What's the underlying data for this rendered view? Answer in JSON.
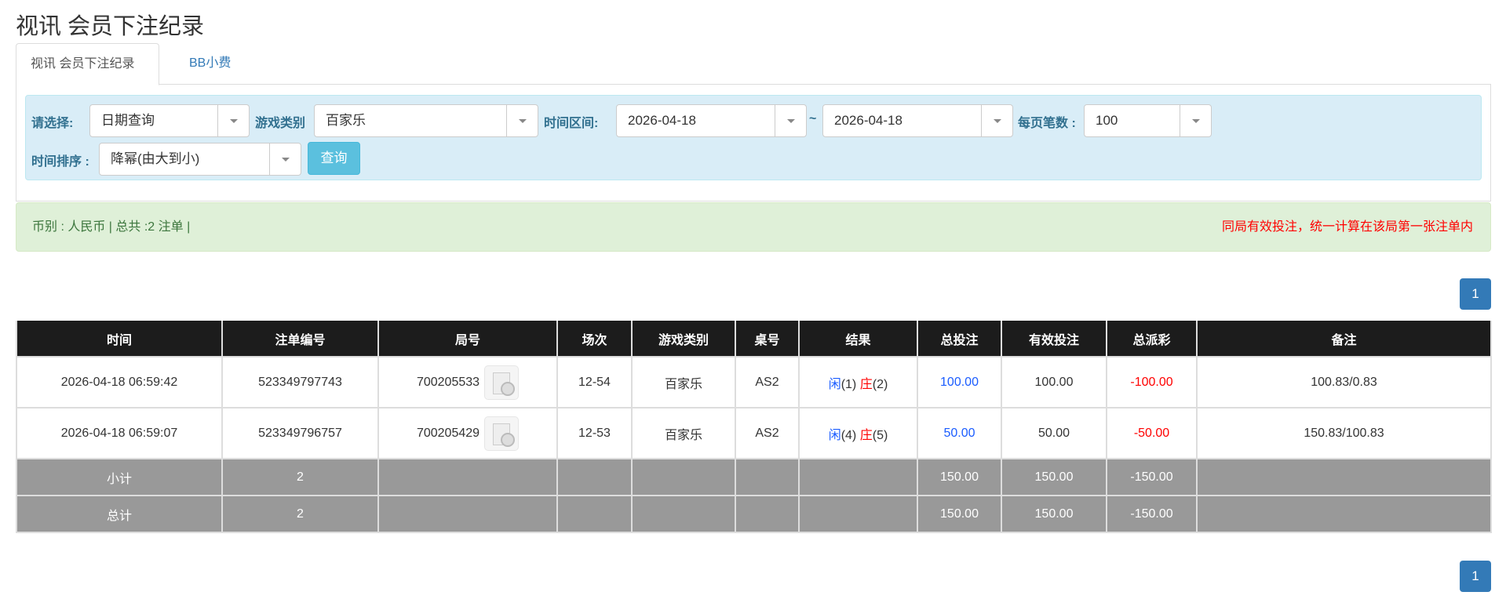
{
  "title": "视讯 会员下注纪录",
  "tabs": [
    {
      "label": "视讯 会员下注纪录"
    },
    {
      "label": "BB小费"
    }
  ],
  "filter": {
    "select_label": "请选择:",
    "select_value": "日期查询",
    "game_label": "游戏类别",
    "game_value": "百家乐",
    "range_label": "时间区间:",
    "date_from": "2026-04-18",
    "tilde": "~",
    "date_to": "2026-04-18",
    "per_page_label": "每页笔数 :",
    "per_page_value": "100",
    "sort_label": "时间排序 :",
    "sort_value": "降幂(由大到小)",
    "query_button": "查询"
  },
  "summary": {
    "text": "币别 : 人民币 | 总共 :2 注单 |",
    "note": "同局有效投注，统一计算在该局第一张注单内"
  },
  "pagination": {
    "page": "1"
  },
  "colors": {
    "header_bg": "#1c1c1c",
    "sum_bg": "#999999",
    "player": "#1a5cff",
    "banker": "#ff0000"
  },
  "table": {
    "headers": [
      "时间",
      "注单编号",
      "局号",
      "场次",
      "游戏类别",
      "桌号",
      "结果",
      "总投注",
      "有效投注",
      "总派彩",
      "备注"
    ],
    "rows": [
      {
        "time": "2026-04-18 06:59:42",
        "bet_id": "523349797743",
        "round": "700205533",
        "session": "12-54",
        "game": "百家乐",
        "table": "AS2",
        "player": "闲",
        "player_score": "(1)",
        "banker": "庄",
        "banker_score": "(2)",
        "total_bet": "100.00",
        "valid_bet": "100.00",
        "payout": "-100.00",
        "remark": "100.83/0.83"
      },
      {
        "time": "2026-04-18 06:59:07",
        "bet_id": "523349796757",
        "round": "700205429",
        "session": "12-53",
        "game": "百家乐",
        "table": "AS2",
        "player": "闲",
        "player_score": "(4)",
        "banker": "庄",
        "banker_score": "(5)",
        "total_bet": "50.00",
        "valid_bet": "50.00",
        "payout": "-50.00",
        "remark": "150.83/100.83"
      }
    ],
    "subtotal": {
      "label": "小计",
      "count": "2",
      "total_bet": "150.00",
      "valid_bet": "150.00",
      "payout": "-150.00"
    },
    "total": {
      "label": "总计",
      "count": "2",
      "total_bet": "150.00",
      "valid_bet": "150.00",
      "payout": "-150.00"
    }
  }
}
